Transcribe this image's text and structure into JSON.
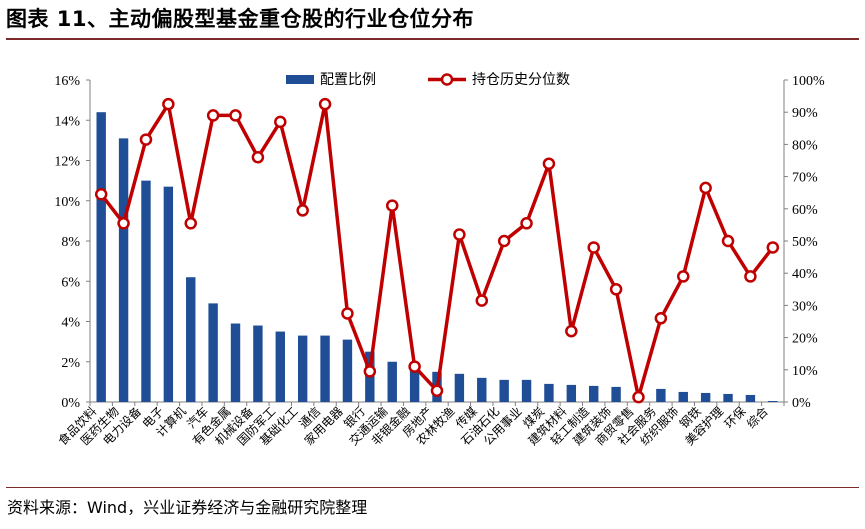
{
  "title": "图表 11、主动偏股型基金重仓股的行业仓位分布",
  "source": "资料来源：Wind，兴业证券经济与金融研究院整理",
  "colors": {
    "bar": "#1f4e96",
    "line": "#c00000",
    "marker_fill": "#ffffff",
    "rule": "#7f2a2a"
  },
  "chart_data": {
    "type": "bar+line",
    "categories": [
      "食品饮料",
      "医药生物",
      "电力设备",
      "电子",
      "计算机",
      "汽车",
      "有色金属",
      "机械设备",
      "国防军工",
      "基础化工",
      "通信",
      "家用电器",
      "银行",
      "交通运输",
      "非银金融",
      "房地产",
      "农林牧渔",
      "传媒",
      "石油石化",
      "公用事业",
      "煤炭",
      "建筑材料",
      "轻工制造",
      "建筑装饰",
      "商贸零售",
      "社会服务",
      "纺织服饰",
      "钢铁",
      "美容护理",
      "环保",
      "综合"
    ],
    "series": [
      {
        "name": "配置比例",
        "axis": "left",
        "type": "bar",
        "values": [
          14.4,
          13.1,
          11.0,
          10.7,
          6.2,
          4.9,
          3.9,
          3.8,
          3.5,
          3.3,
          3.3,
          3.1,
          2.5,
          2.0,
          1.8,
          1.5,
          1.4,
          1.2,
          1.1,
          1.1,
          0.9,
          0.85,
          0.8,
          0.75,
          0.0,
          0.65,
          0.5,
          0.45,
          0.4,
          0.35,
          0.05
        ]
      },
      {
        "name": "持仓历史分位数",
        "axis": "right",
        "type": "line",
        "values": [
          64.5,
          55.5,
          81.5,
          92.5,
          55.5,
          89,
          89,
          76,
          87,
          59.5,
          92.5,
          27.5,
          9.5,
          61,
          11,
          3.5,
          52,
          31.5,
          50,
          55.5,
          74,
          22,
          48,
          35,
          1.5,
          26,
          39,
          66.5,
          50,
          39,
          48
        ]
      }
    ],
    "left_axis": {
      "min": 0,
      "max": 16,
      "step": 2,
      "format": "percent"
    },
    "right_axis": {
      "min": 0,
      "max": 100,
      "step": 10,
      "format": "percent"
    },
    "legend_position": "top-center",
    "grid": false
  }
}
